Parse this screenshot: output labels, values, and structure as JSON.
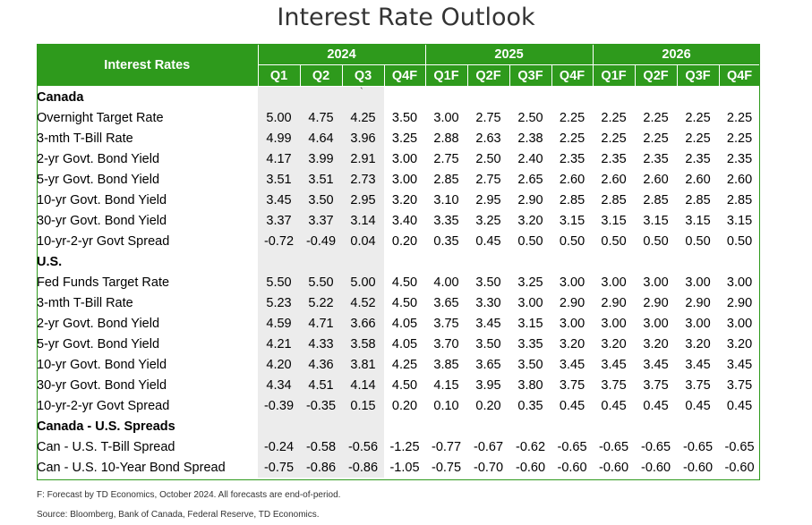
{
  "title": "Interest Rate Outlook",
  "header": {
    "first_col": "Interest Rates",
    "years": [
      "2024",
      "2025",
      "2026"
    ],
    "quarters": [
      "Q1",
      "Q2",
      "Q3",
      "Q4F",
      "Q1F",
      "Q2F",
      "Q3F",
      "Q4F",
      "Q1F",
      "Q2F",
      "Q3F",
      "Q4F"
    ]
  },
  "stray_mark": "`",
  "sections": [
    {
      "name": "Canada",
      "rows": [
        {
          "label": "Overnight Target Rate",
          "values": [
            "5.00",
            "4.75",
            "4.25",
            "3.50",
            "3.00",
            "2.75",
            "2.50",
            "2.25",
            "2.25",
            "2.25",
            "2.25",
            "2.25"
          ]
        },
        {
          "label": "3-mth T-Bill Rate",
          "values": [
            "4.99",
            "4.64",
            "3.96",
            "3.25",
            "2.88",
            "2.63",
            "2.38",
            "2.25",
            "2.25",
            "2.25",
            "2.25",
            "2.25"
          ]
        },
        {
          "label": "2-yr Govt. Bond Yield",
          "values": [
            "4.17",
            "3.99",
            "2.91",
            "3.00",
            "2.75",
            "2.50",
            "2.40",
            "2.35",
            "2.35",
            "2.35",
            "2.35",
            "2.35"
          ]
        },
        {
          "label": "5-yr Govt. Bond Yield",
          "values": [
            "3.51",
            "3.51",
            "2.73",
            "3.00",
            "2.85",
            "2.75",
            "2.65",
            "2.60",
            "2.60",
            "2.60",
            "2.60",
            "2.60"
          ]
        },
        {
          "label": "10-yr Govt. Bond Yield",
          "values": [
            "3.45",
            "3.50",
            "2.95",
            "3.20",
            "3.10",
            "2.95",
            "2.90",
            "2.85",
            "2.85",
            "2.85",
            "2.85",
            "2.85"
          ]
        },
        {
          "label": "30-yr Govt. Bond Yield",
          "values": [
            "3.37",
            "3.37",
            "3.14",
            "3.40",
            "3.35",
            "3.25",
            "3.20",
            "3.15",
            "3.15",
            "3.15",
            "3.15",
            "3.15"
          ]
        },
        {
          "label": "10-yr-2-yr Govt Spread",
          "values": [
            "-0.72",
            "-0.49",
            "0.04",
            "0.20",
            "0.35",
            "0.45",
            "0.50",
            "0.50",
            "0.50",
            "0.50",
            "0.50",
            "0.50"
          ]
        }
      ]
    },
    {
      "name": "U.S.",
      "rows": [
        {
          "label": "Fed Funds Target Rate",
          "values": [
            "5.50",
            "5.50",
            "5.00",
            "4.50",
            "4.00",
            "3.50",
            "3.25",
            "3.00",
            "3.00",
            "3.00",
            "3.00",
            "3.00"
          ]
        },
        {
          "label": "3-mth T-Bill Rate",
          "values": [
            "5.23",
            "5.22",
            "4.52",
            "4.50",
            "3.65",
            "3.30",
            "3.00",
            "2.90",
            "2.90",
            "2.90",
            "2.90",
            "2.90"
          ]
        },
        {
          "label": "2-yr Govt. Bond Yield",
          "values": [
            "4.59",
            "4.71",
            "3.66",
            "4.05",
            "3.75",
            "3.45",
            "3.15",
            "3.00",
            "3.00",
            "3.00",
            "3.00",
            "3.00"
          ]
        },
        {
          "label": "5-yr Govt. Bond Yield",
          "values": [
            "4.21",
            "4.33",
            "3.58",
            "4.05",
            "3.70",
            "3.50",
            "3.35",
            "3.20",
            "3.20",
            "3.20",
            "3.20",
            "3.20"
          ]
        },
        {
          "label": "10-yr Govt. Bond Yield",
          "values": [
            "4.20",
            "4.36",
            "3.81",
            "4.25",
            "3.85",
            "3.65",
            "3.50",
            "3.45",
            "3.45",
            "3.45",
            "3.45",
            "3.45"
          ]
        },
        {
          "label": "30-yr Govt. Bond Yield",
          "values": [
            "4.34",
            "4.51",
            "4.14",
            "4.50",
            "4.15",
            "3.95",
            "3.80",
            "3.75",
            "3.75",
            "3.75",
            "3.75",
            "3.75"
          ]
        },
        {
          "label": "10-yr-2-yr Govt Spread",
          "values": [
            "-0.39",
            "-0.35",
            "0.15",
            "0.20",
            "0.10",
            "0.20",
            "0.35",
            "0.45",
            "0.45",
            "0.45",
            "0.45",
            "0.45"
          ]
        }
      ]
    },
    {
      "name": "Canada - U.S. Spreads",
      "rows": [
        {
          "label": "Can - U.S. T-Bill Spread",
          "values": [
            "-0.24",
            "-0.58",
            "-0.56",
            "-1.25",
            "-0.77",
            "-0.67",
            "-0.62",
            "-0.65",
            "-0.65",
            "-0.65",
            "-0.65",
            "-0.65"
          ]
        },
        {
          "label": "Can - U.S. 10-Year Bond Spread",
          "values": [
            "-0.75",
            "-0.86",
            "-0.86",
            "-1.05",
            "-0.75",
            "-0.70",
            "-0.60",
            "-0.60",
            "-0.60",
            "-0.60",
            "-0.60",
            "-0.60"
          ]
        }
      ]
    }
  ],
  "footnotes": [
    "F: Forecast by TD Economics, October 2024. All forecasts are end-of-period.",
    "Source: Bloomberg, Bank of Canada, Federal Reserve, TD Economics."
  ],
  "colors": {
    "header_green": "#2e9a1c",
    "shade_gray": "#ececec"
  }
}
